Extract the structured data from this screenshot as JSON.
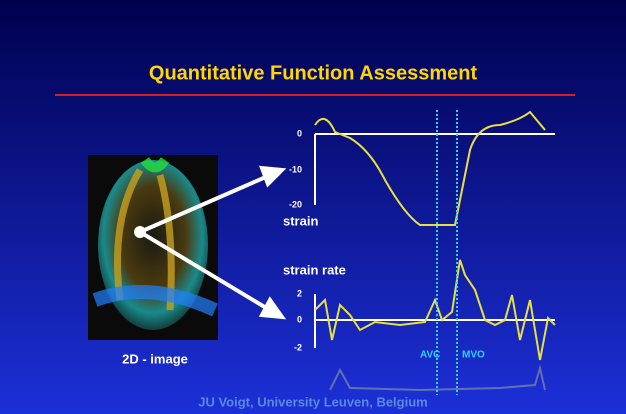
{
  "title": "Quantitative Function Assessment",
  "image_label": "2D - image",
  "strain": {
    "label": "strain",
    "ticks": [
      0,
      -10,
      -20
    ]
  },
  "strain_rate": {
    "label": "strain rate",
    "ticks": [
      2,
      0,
      -2
    ]
  },
  "markers": [
    "AVC",
    "MVO"
  ],
  "footer": "JU Voigt, University Leuven, Belgium"
}
